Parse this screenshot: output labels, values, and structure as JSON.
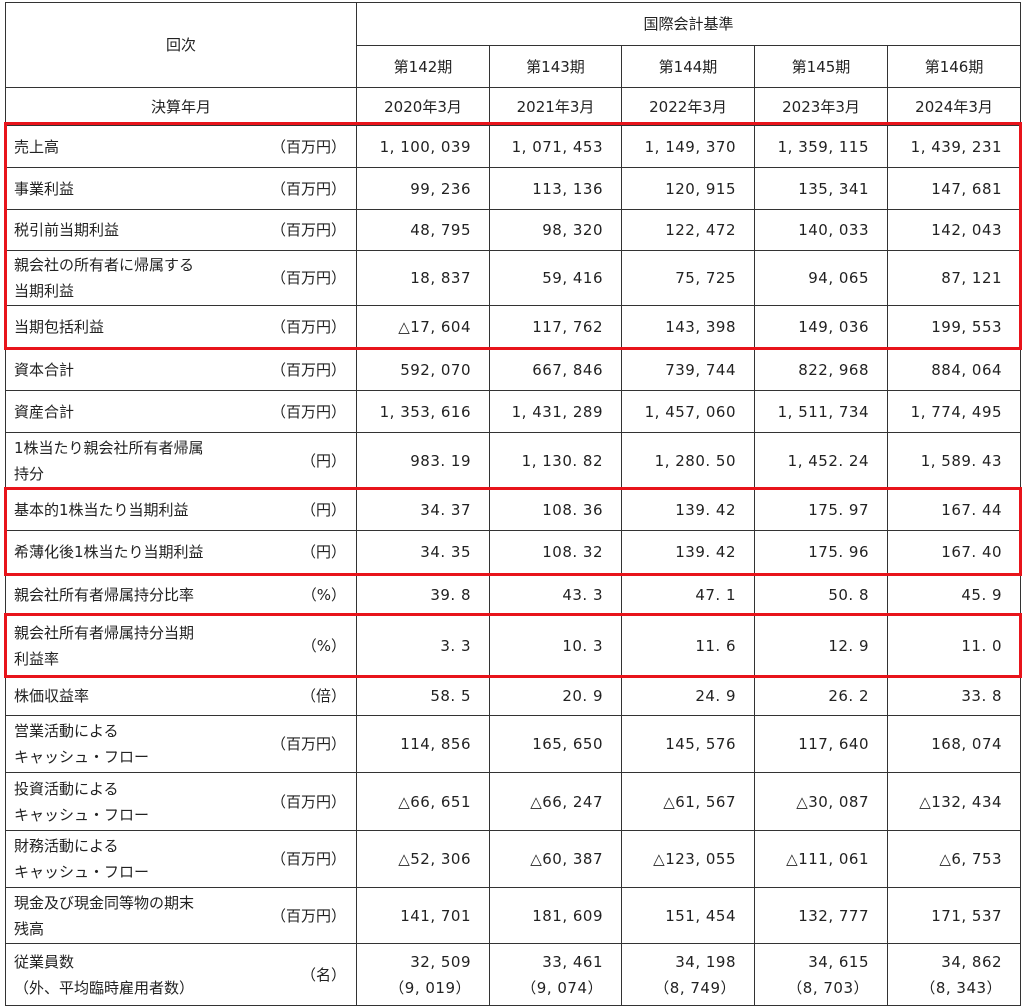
{
  "header": {
    "kaiji": "回次",
    "standard": "国際会計基準",
    "kessan": "決算年月",
    "periods": [
      "第142期",
      "第143期",
      "第144期",
      "第145期",
      "第146期"
    ],
    "dates": [
      "2020年3月",
      "2021年3月",
      "2022年3月",
      "2023年3月",
      "2024年3月"
    ]
  },
  "rows": [
    {
      "label": [
        "売上高"
      ],
      "unit": "（百万円）",
      "values": [
        "1, 100, 039",
        "1, 071, 453",
        "1, 149, 370",
        "1, 359, 115",
        "1, 439, 231"
      ]
    },
    {
      "label": [
        "事業利益"
      ],
      "unit": "（百万円）",
      "values": [
        "99, 236",
        "113, 136",
        "120, 915",
        "135, 341",
        "147, 681"
      ]
    },
    {
      "label": [
        "税引前当期利益"
      ],
      "unit": "（百万円）",
      "values": [
        "48, 795",
        "98, 320",
        "122, 472",
        "140, 033",
        "142, 043"
      ]
    },
    {
      "label": [
        "親会社の所有者に帰属する",
        "当期利益"
      ],
      "unit": "（百万円）",
      "values": [
        "18, 837",
        "59, 416",
        "75, 725",
        "94, 065",
        "87, 121"
      ]
    },
    {
      "label": [
        "当期包括利益"
      ],
      "unit": "（百万円）",
      "values": [
        "△17, 604",
        "117, 762",
        "143, 398",
        "149, 036",
        "199, 553"
      ]
    },
    {
      "label": [
        "資本合計"
      ],
      "unit": "（百万円）",
      "values": [
        "592, 070",
        "667, 846",
        "739, 744",
        "822, 968",
        "884, 064"
      ]
    },
    {
      "label": [
        "資産合計"
      ],
      "unit": "（百万円）",
      "values": [
        "1, 353, 616",
        "1, 431, 289",
        "1, 457, 060",
        "1, 511, 734",
        "1, 774, 495"
      ]
    },
    {
      "label": [
        "1株当たり親会社所有者帰属",
        "持分"
      ],
      "unit": "（円）",
      "values": [
        "983. 19",
        "1, 130. 82",
        "1, 280. 50",
        "1, 452. 24",
        "1, 589. 43"
      ]
    },
    {
      "label": [
        "基本的1株当たり当期利益"
      ],
      "unit": "（円）",
      "values": [
        "34. 37",
        "108. 36",
        "139. 42",
        "175. 97",
        "167. 44"
      ]
    },
    {
      "label": [
        "希薄化後1株当たり当期利益"
      ],
      "unit": "（円）",
      "values": [
        "34. 35",
        "108. 32",
        "139. 42",
        "175. 96",
        "167. 40"
      ]
    },
    {
      "label": [
        "親会社所有者帰属持分比率"
      ],
      "unit": "（%）",
      "values": [
        "39. 8",
        "43. 3",
        "47. 1",
        "50. 8",
        "45. 9"
      ]
    },
    {
      "label": [
        "親会社所有者帰属持分当期",
        "利益率"
      ],
      "unit": "（%）",
      "values": [
        "3. 3",
        "10. 3",
        "11. 6",
        "12. 9",
        "11. 0"
      ]
    },
    {
      "label": [
        "株価収益率"
      ],
      "unit": "（倍）",
      "values": [
        "58. 5",
        "20. 9",
        "24. 9",
        "26. 2",
        "33. 8"
      ]
    },
    {
      "label": [
        "営業活動による",
        "キャッシュ・フロー"
      ],
      "unit": "（百万円）",
      "values": [
        "114, 856",
        "165, 650",
        "145, 576",
        "117, 640",
        "168, 074"
      ]
    },
    {
      "label": [
        "投資活動による",
        "キャッシュ・フロー"
      ],
      "unit": "（百万円）",
      "values": [
        "△66, 651",
        "△66, 247",
        "△61, 567",
        "△30, 087",
        "△132, 434"
      ]
    },
    {
      "label": [
        "財務活動による",
        "キャッシュ・フロー"
      ],
      "unit": "（百万円）",
      "values": [
        "△52, 306",
        "△60, 387",
        "△123, 055",
        "△111, 061",
        "△6, 753"
      ]
    },
    {
      "label": [
        "現金及び現金同等物の期末",
        "残高"
      ],
      "unit": "（百万円）",
      "values": [
        "141, 701",
        "181, 609",
        "151, 454",
        "132, 777",
        "171, 537"
      ]
    },
    {
      "label": [
        "従業員数",
        "（外、平均臨時雇用者数）"
      ],
      "unit": "（名）",
      "values": [
        "32, 509",
        "33, 461",
        "34, 198",
        "34, 615",
        "34, 862"
      ],
      "sub": [
        "（9, 019）",
        "（9, 074）",
        "（8, 749）",
        "（8, 703）",
        "（8, 343）"
      ]
    }
  ],
  "highlight_color": "#e8141b"
}
